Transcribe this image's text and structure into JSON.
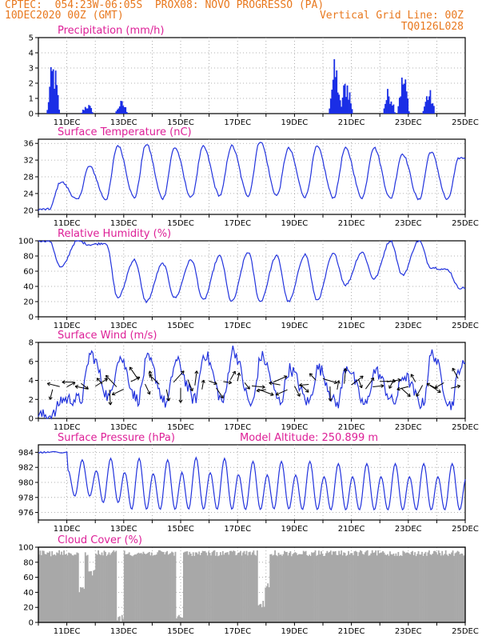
{
  "header": {
    "line1": "CPTEC:  054:23W-06:05S  PROX08: NOVO PROGRESSO (PA)",
    "line2_left": "10DEC2020 00Z (GMT)",
    "line2_right": "Vertical Grid Line: 00Z",
    "line3_right": "TQ0126L028"
  },
  "colors": {
    "header": "#e8781e",
    "title": "#dd1f97",
    "line": "#2233dd",
    "bar": "#1a2ee6",
    "cloud": "#a8a8a8",
    "grid": "#999999"
  },
  "x_axis": {
    "start_day": 10,
    "end_day": 25,
    "tick_labels": [
      "11DEC",
      "13DEC",
      "15DEC",
      "17DEC",
      "19DEC",
      "21DEC",
      "23DEC",
      "25DEC"
    ],
    "tick_days": [
      11,
      13,
      15,
      17,
      19,
      21,
      23,
      25
    ]
  },
  "panels": {
    "precip": {
      "title": "Precipitation (mm/h)",
      "yticks": [
        0,
        1,
        2,
        3,
        4,
        5
      ],
      "ylim": [
        0,
        5
      ]
    },
    "temp": {
      "title": "Surface Temperature (nC)",
      "yticks": [
        20,
        24,
        28,
        32,
        36
      ],
      "ylim": [
        19,
        37
      ]
    },
    "rh": {
      "title": "Relative Humidity (%)",
      "yticks": [
        0,
        20,
        40,
        60,
        80,
        100
      ],
      "ylim": [
        0,
        100
      ]
    },
    "wind": {
      "title": "Surface Wind (m/s)",
      "yticks": [
        0,
        2,
        4,
        6,
        8
      ],
      "ylim": [
        0,
        8
      ]
    },
    "pres": {
      "title": "Surface Pressure (hPa)",
      "subtitle": "Model Altitude: 250.899 m",
      "yticks": [
        976,
        978,
        980,
        982,
        984
      ],
      "ylim": [
        975,
        985
      ]
    },
    "cloud": {
      "title": "Cloud Cover (%)",
      "yticks": [
        0,
        20,
        40,
        60,
        80,
        100
      ],
      "ylim": [
        0,
        100
      ]
    }
  },
  "chart_data": [
    {
      "type": "bar",
      "title": "Precipitation (mm/h)",
      "units": "mm/h",
      "bursts": [
        {
          "day": 10.5,
          "peak": 3.7
        },
        {
          "day": 11.7,
          "peak": 0.7
        },
        {
          "day": 12.9,
          "peak": 0.9
        },
        {
          "day": 20.4,
          "peak": 3.7
        },
        {
          "day": 20.8,
          "peak": 2.6
        },
        {
          "day": 22.3,
          "peak": 1.8
        },
        {
          "day": 22.8,
          "peak": 2.9
        },
        {
          "day": 23.7,
          "peak": 1.7
        }
      ]
    },
    {
      "type": "line",
      "title": "Surface Temperature (nC)",
      "units": "C",
      "daily_min": [
        20.2,
        22.5,
        22.6,
        23.0,
        22.8,
        23.0,
        23.5,
        23.5,
        23.5,
        23.2,
        23.0,
        23.0,
        22.8,
        22.5,
        22.5
      ],
      "daily_max": [
        26.8,
        30.5,
        35.5,
        35.8,
        35.0,
        35.2,
        35.4,
        36.5,
        34.8,
        35.2,
        34.8,
        35.0,
        33.5,
        34.0,
        32.5
      ]
    },
    {
      "type": "line",
      "title": "Relative Humidity (%)",
      "units": "%",
      "daily_min": [
        65,
        95,
        25,
        20,
        25,
        22,
        20,
        20,
        20,
        22,
        42,
        50,
        55,
        65,
        38
      ],
      "daily_max": [
        100,
        100,
        97,
        75,
        70,
        75,
        80,
        85,
        80,
        82,
        83,
        85,
        100,
        100,
        62
      ]
    },
    {
      "type": "line",
      "title": "Surface Wind (m/s)",
      "units": "m/s",
      "daily_min": [
        0.3,
        2.0,
        2.2,
        2.0,
        1.6,
        2.0,
        1.8,
        1.4,
        1.8,
        1.7,
        1.5,
        1.4,
        1.7,
        1.5,
        1.4
      ],
      "daily_max": [
        2.0,
        6.8,
        6.5,
        6.2,
        6.0,
        6.8,
        7.2,
        6.5,
        5.2,
        5.3,
        5.5,
        5.0,
        4.5,
        6.8,
        5.5
      ]
    },
    {
      "type": "line",
      "title": "Surface Pressure (hPa)",
      "units": "hPa",
      "daily_min": [
        983.9,
        977.5,
        976.5,
        975.5,
        975.5,
        975.5,
        975.5,
        975.5,
        975.6,
        975.5,
        975.5,
        975.5,
        975.5,
        975.5,
        975.5
      ],
      "daily_max": [
        984.1,
        983.0,
        983.2,
        983.2,
        983.0,
        983.3,
        983.2,
        982.8,
        982.8,
        982.8,
        982.5,
        982.5,
        982.5,
        982.5,
        982.5
      ]
    },
    {
      "type": "bar",
      "title": "Cloud Cover (%)",
      "units": "%",
      "baseline": 96,
      "dips": [
        {
          "day": 11.5,
          "min": 40
        },
        {
          "day": 11.85,
          "min": 60
        },
        {
          "day": 12.85,
          "min": 0
        },
        {
          "day": 14.95,
          "min": 0
        },
        {
          "day": 17.8,
          "min": 20
        },
        {
          "day": 18.0,
          "min": 45
        }
      ]
    }
  ]
}
